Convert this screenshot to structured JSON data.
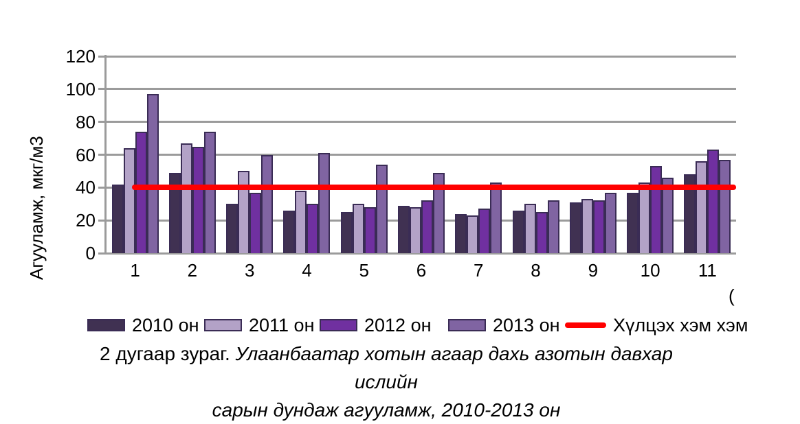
{
  "chart_data": {
    "type": "bar",
    "title": "",
    "ylabel": "Агууламж, мкг/м3",
    "x_axis_title_partial": "(",
    "categories": [
      "1",
      "2",
      "3",
      "4",
      "5",
      "6",
      "7",
      "8",
      "9",
      "10",
      "11"
    ],
    "ylim": [
      0,
      120
    ],
    "ytick_step": 20,
    "grid": true,
    "legend_position": "bottom",
    "series": [
      {
        "name": "2010 он",
        "color": "#403152",
        "values": [
          42,
          49,
          30,
          26,
          25,
          29,
          24,
          26,
          31,
          37,
          48
        ]
      },
      {
        "name": "2011 он",
        "color": "#b3a2c7",
        "values": [
          64,
          67,
          50,
          38,
          30,
          28,
          23,
          30,
          33,
          43,
          56
        ]
      },
      {
        "name": "2012 он",
        "color": "#7030a0",
        "values": [
          74,
          65,
          37,
          30,
          28,
          32,
          27,
          25,
          32,
          53,
          63
        ]
      },
      {
        "name": "2013 он",
        "color": "#8064a2",
        "values": [
          97,
          74,
          60,
          61,
          54,
          49,
          43,
          32,
          37,
          46,
          57
        ]
      }
    ],
    "reference_line": {
      "label": "Хүлцэх хэм хэм",
      "value": 40,
      "color": "#ff0000"
    }
  },
  "caption": {
    "figure_label": "2 дугаар зураг.",
    "line1_italic": "Улаанбаатар хотын агаар дахь азотын давхар ислийн",
    "line2_italic": "сарын дундаж агууламж, 2010-2013 он"
  },
  "colors": {
    "axis_gray": "#9b9b9b",
    "bar_border": "#3a2c55"
  }
}
